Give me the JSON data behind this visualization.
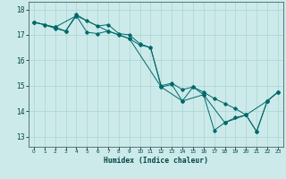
{
  "title": "",
  "xlabel": "Humidex (Indice chaleur)",
  "background_color": "#cceaea",
  "grid_color": "#aad4d4",
  "line_color": "#006868",
  "xlim": [
    -0.5,
    23.5
  ],
  "ylim": [
    12.6,
    18.3
  ],
  "yticks": [
    13,
    14,
    15,
    16,
    17,
    18
  ],
  "xticks": [
    0,
    1,
    2,
    3,
    4,
    5,
    6,
    7,
    8,
    9,
    10,
    11,
    12,
    13,
    14,
    15,
    16,
    17,
    18,
    19,
    20,
    21,
    22,
    23
  ],
  "line1_x": [
    0,
    1,
    2,
    3,
    4,
    5,
    6,
    7,
    8,
    9,
    10,
    11,
    12,
    13,
    14,
    15,
    16,
    17,
    18,
    19,
    20,
    21,
    22,
    23
  ],
  "line1_y": [
    17.5,
    17.4,
    17.3,
    17.15,
    17.75,
    17.1,
    17.05,
    17.15,
    17.0,
    16.85,
    16.6,
    16.5,
    14.95,
    15.05,
    14.4,
    14.95,
    14.65,
    13.25,
    13.55,
    13.75,
    13.85,
    13.2,
    14.4,
    14.75
  ],
  "line2_x": [
    0,
    1,
    2,
    3,
    4,
    5,
    6,
    7,
    8,
    9,
    10,
    11,
    12,
    13,
    14,
    15,
    16,
    17,
    18,
    19,
    20,
    21,
    22,
    23
  ],
  "line2_y": [
    17.5,
    17.4,
    17.25,
    17.15,
    17.8,
    17.55,
    17.35,
    17.4,
    17.05,
    17.0,
    16.65,
    16.5,
    15.0,
    15.1,
    14.85,
    14.95,
    14.75,
    14.5,
    14.3,
    14.1,
    13.85,
    13.2,
    14.4,
    14.75
  ],
  "line3_x": [
    0,
    2,
    4,
    7,
    9,
    12,
    14,
    16,
    18,
    20,
    22,
    23
  ],
  "line3_y": [
    17.5,
    17.3,
    17.75,
    17.15,
    16.85,
    14.95,
    14.4,
    14.65,
    13.55,
    13.85,
    14.4,
    14.75
  ]
}
